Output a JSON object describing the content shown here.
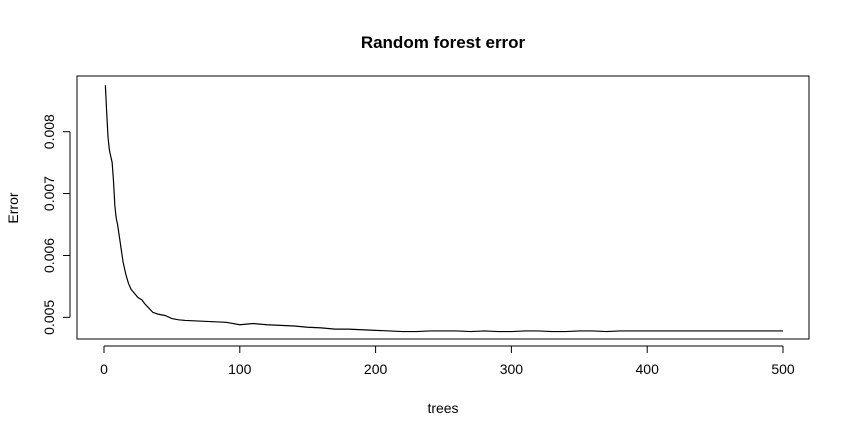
{
  "chart_data": {
    "type": "line",
    "title": "Random forest error",
    "xlabel": "trees",
    "ylabel": "Error",
    "xlim": [
      0,
      500
    ],
    "ylim": [
      0.00465,
      0.0089
    ],
    "x_ticks": [
      0,
      100,
      200,
      300,
      400,
      500
    ],
    "y_ticks": [
      0.005,
      0.006,
      0.007,
      0.008
    ],
    "x_tick_labels": [
      "0",
      "100",
      "200",
      "300",
      "400",
      "500"
    ],
    "y_tick_labels": [
      "0.005",
      "0.006",
      "0.007",
      "0.008"
    ],
    "grid": false,
    "series": [
      {
        "color": "#000000",
        "x": [
          1,
          2,
          3,
          4,
          5,
          6,
          7,
          8,
          9,
          10,
          12,
          14,
          16,
          18,
          20,
          22,
          25,
          28,
          30,
          33,
          36,
          40,
          45,
          50,
          55,
          60,
          70,
          80,
          90,
          100,
          105,
          110,
          120,
          130,
          140,
          150,
          160,
          170,
          180,
          190,
          200,
          210,
          220,
          230,
          240,
          250,
          260,
          270,
          280,
          290,
          300,
          310,
          320,
          330,
          340,
          350,
          360,
          370,
          380,
          390,
          400,
          410,
          420,
          430,
          440,
          450,
          460,
          470,
          480,
          490,
          500
        ],
        "y": [
          0.00875,
          0.0083,
          0.0079,
          0.0077,
          0.0076,
          0.0075,
          0.0072,
          0.0068,
          0.0066,
          0.0065,
          0.0062,
          0.0059,
          0.0057,
          0.00555,
          0.00545,
          0.0054,
          0.00532,
          0.00528,
          0.00522,
          0.00515,
          0.00508,
          0.00505,
          0.00503,
          0.00498,
          0.00496,
          0.00495,
          0.00494,
          0.00493,
          0.00492,
          0.00488,
          0.00489,
          0.0049,
          0.00488,
          0.00487,
          0.00486,
          0.00484,
          0.00483,
          0.00481,
          0.00481,
          0.0048,
          0.00479,
          0.00478,
          0.00477,
          0.00477,
          0.00478,
          0.00478,
          0.00478,
          0.00477,
          0.00478,
          0.00477,
          0.00477,
          0.00478,
          0.00478,
          0.00477,
          0.00477,
          0.00478,
          0.00478,
          0.00477,
          0.00478,
          0.00478,
          0.00478,
          0.00478,
          0.00478,
          0.00478,
          0.00478,
          0.00478,
          0.00478,
          0.00478,
          0.00478,
          0.00478,
          0.00478
        ]
      }
    ]
  }
}
